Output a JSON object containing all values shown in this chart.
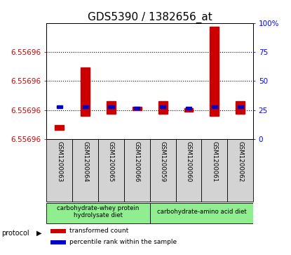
{
  "title": "GDS5390 / 1382656_at",
  "samples": [
    "GSM1200063",
    "GSM1200064",
    "GSM1200065",
    "GSM1200066",
    "GSM1200059",
    "GSM1200060",
    "GSM1200061",
    "GSM1200062"
  ],
  "red_bottom_pct": [
    8,
    20,
    22,
    25,
    22,
    24,
    20,
    22
  ],
  "red_top_pct": [
    12,
    62,
    33,
    28,
    33,
    27,
    97,
    33
  ],
  "blue_pct": [
    28,
    28,
    28,
    27,
    28,
    27,
    28,
    28
  ],
  "ylim_pct_min": 0,
  "ylim_pct_max": 100,
  "right_yticks": [
    0,
    25,
    50,
    75,
    100
  ],
  "right_ytick_labels": [
    "0",
    "25",
    "50",
    "75",
    "100%"
  ],
  "left_ytick_pcts": [
    75,
    50,
    25,
    0
  ],
  "left_ytick_labels": [
    "6.55696",
    "6.55696",
    "6.55696",
    "6.55696"
  ],
  "dotted_pcts": [
    75,
    50,
    25
  ],
  "group1_label": "carbohydrate-whey protein\nhydrolysate diet",
  "group2_label": "carbohydrate-amino acid diet",
  "protocol_label": "protocol",
  "legend_red": "transformed count",
  "legend_blue": "percentile rank within the sample",
  "group1_color": "#90ee90",
  "group2_color": "#90ee90",
  "bar_bg_color": "#d3d3d3",
  "red_color": "#cc0000",
  "blue_color": "#0000cc",
  "title_fontsize": 11,
  "tick_fontsize": 7.5,
  "sample_fontsize": 6.2,
  "protocol_fontsize": 7,
  "legend_fontsize": 6.5,
  "n_group1": 4,
  "n_group2": 4
}
